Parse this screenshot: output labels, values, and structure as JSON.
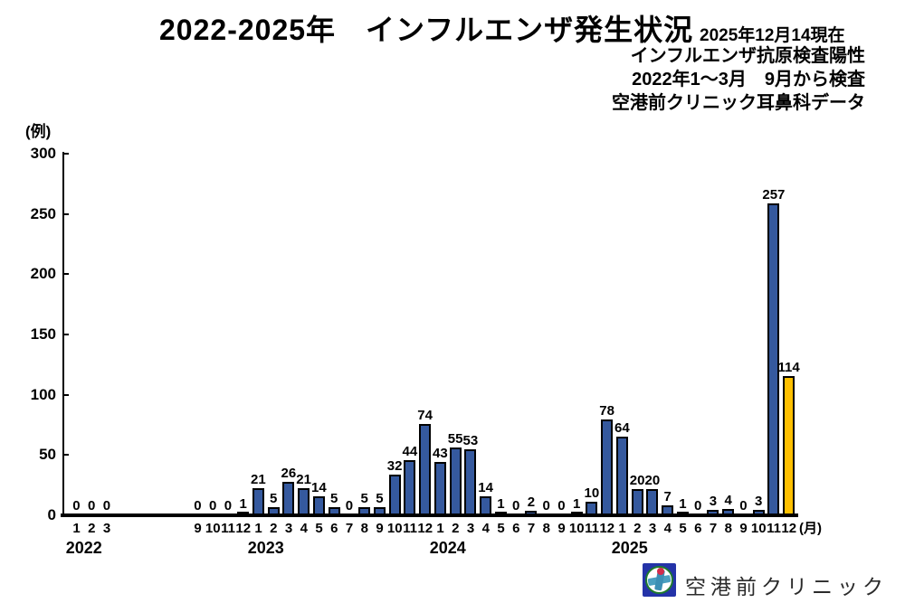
{
  "header": {
    "title": "2022-2025年　インフルエンザ発生状況",
    "as_of": "2025年12月14現在",
    "notes": [
      "インフルエンザ抗原検査陽性",
      "2022年1～3月　9月から検査",
      "空港前クリニック耳鼻科データ"
    ]
  },
  "chart_data": {
    "type": "bar",
    "title": "2022-2025年 インフルエンザ発生状況",
    "unit_label": "(例)",
    "month_unit_label": "(月)",
    "ylabel": "例 (cases)",
    "xlabel": "月 (month)",
    "ylim": [
      0,
      300
    ],
    "yticks": [
      0,
      50,
      100,
      150,
      200,
      250,
      300
    ],
    "grid": false,
    "legend": "none",
    "bar_color": "#35599E",
    "highlight_color": "#FFC000",
    "groups": [
      {
        "year_label": "2022",
        "months": [
          "1",
          "2",
          "3"
        ],
        "values": [
          0,
          0,
          0
        ]
      },
      {
        "gap_slots": 5,
        "months": [
          "9",
          "10",
          "11",
          "12"
        ],
        "values": [
          0,
          0,
          0,
          1
        ]
      },
      {
        "year_label": "2023",
        "months": [
          "1",
          "2",
          "3",
          "4",
          "5",
          "6",
          "7",
          "8",
          "9",
          "10",
          "11",
          "12"
        ],
        "values": [
          21,
          5,
          26,
          21,
          14,
          5,
          0,
          5,
          5,
          32,
          44,
          74
        ]
      },
      {
        "year_label": "2024",
        "months": [
          "1",
          "2",
          "3",
          "4",
          "5",
          "6",
          "7",
          "8",
          "9",
          "10",
          "11",
          "12"
        ],
        "values": [
          43,
          55,
          53,
          14,
          1,
          0,
          2,
          0,
          0,
          1,
          10,
          78
        ]
      },
      {
        "year_label": "2025",
        "months": [
          "1",
          "2",
          "3",
          "4",
          "5",
          "6",
          "7",
          "8",
          "9",
          "10",
          "11",
          "12"
        ],
        "values": [
          64,
          20,
          20,
          7,
          1,
          0,
          3,
          4,
          0,
          3,
          257,
          114
        ],
        "highlight_month_index": 11
      }
    ]
  },
  "footer": {
    "clinic_name": "空港前クリニック",
    "logo_icon": "clinic-logo"
  }
}
